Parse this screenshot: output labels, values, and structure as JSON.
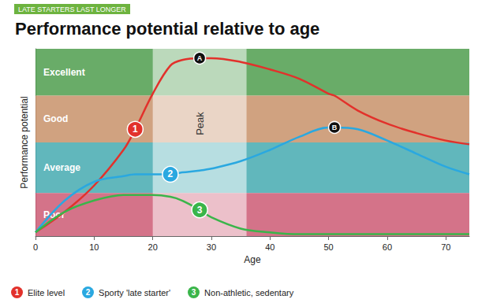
{
  "chart_data": {
    "type": "line",
    "tag": "LATE STARTERS LAST LONGER",
    "title": "Performance potential relative to age",
    "x_label": "Age",
    "y_label": "Performance potential",
    "x": [
      0,
      5,
      10,
      15,
      17,
      20,
      23,
      25,
      28,
      30,
      35,
      40,
      45,
      50,
      51,
      55,
      60,
      65,
      70,
      74
    ],
    "xlim": [
      0,
      74
    ],
    "xticks": [
      0,
      10,
      20,
      30,
      40,
      50,
      60,
      70
    ],
    "ylim": [
      0,
      100
    ],
    "yticks": [],
    "tick_labels": "x",
    "grid": false,
    "legend": "bottom",
    "bands": [
      {
        "label": "Excellent",
        "from": 75,
        "to": 100,
        "color": "#4f9e4e"
      },
      {
        "label": "Good",
        "from": 50,
        "to": 75,
        "color": "#c8926a"
      },
      {
        "label": "Average",
        "from": 23,
        "to": 50,
        "color": "#45aab0"
      },
      {
        "label": "Poor",
        "from": 0,
        "to": 23,
        "color": "#cc5b74"
      }
    ],
    "highlight": {
      "label": "Peak",
      "from": 20,
      "to": 36
    },
    "series": [
      {
        "name": "Elite level",
        "color": "#e2312b",
        "values": [
          2,
          13,
          27,
          46,
          57,
          76,
          91,
          94,
          95,
          95,
          93,
          89,
          84,
          76,
          75,
          67,
          60,
          55,
          51,
          49
        ],
        "marks": [
          {
            "x": 17,
            "label": "1"
          },
          {
            "x": 28,
            "label": "A"
          }
        ]
      },
      {
        "name": "Sporty 'late starter'",
        "color": "#2aa8e0",
        "values": [
          2,
          19,
          29,
          32,
          33,
          33,
          33,
          34,
          35,
          36,
          40,
          46,
          53,
          58,
          58,
          57,
          51,
          44,
          37,
          33
        ],
        "marks": [
          {
            "x": 23,
            "label": "2"
          },
          {
            "x": 51,
            "label": "B"
          }
        ]
      },
      {
        "name": "Non-athletic, sedentary",
        "color": "#3ab54a",
        "values": [
          2,
          13,
          19,
          22,
          22,
          22,
          21,
          19,
          14,
          10,
          4,
          2,
          1,
          1,
          1,
          1,
          1,
          1,
          1,
          1
        ],
        "marks": [
          {
            "x": 28,
            "label": "3"
          }
        ]
      }
    ]
  }
}
